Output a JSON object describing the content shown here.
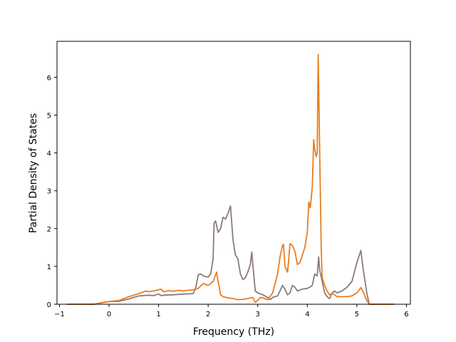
{
  "chart_data": {
    "type": "line",
    "title": "",
    "xlabel": "Frequency (THz)",
    "ylabel": "Partial Density of States",
    "xlim": [
      -1.05,
      6.08
    ],
    "ylim": [
      0,
      6.95
    ],
    "xticks": [
      -1,
      0,
      1,
      2,
      3,
      4,
      5,
      6
    ],
    "yticks": [
      0,
      1,
      2,
      3,
      4,
      5,
      6
    ],
    "grid": false,
    "legend": "none",
    "series": [
      {
        "color": "#8c7b7b",
        "points": [
          [
            -0.85,
            0.0
          ],
          [
            -0.3,
            0.0
          ],
          [
            -0.1,
            0.05
          ],
          [
            0.0,
            0.07
          ],
          [
            0.2,
            0.08
          ],
          [
            0.4,
            0.14
          ],
          [
            0.5,
            0.18
          ],
          [
            0.6,
            0.22
          ],
          [
            0.8,
            0.24
          ],
          [
            0.9,
            0.23
          ],
          [
            1.0,
            0.27
          ],
          [
            1.05,
            0.23
          ],
          [
            1.1,
            0.24
          ],
          [
            1.3,
            0.25
          ],
          [
            1.5,
            0.27
          ],
          [
            1.7,
            0.28
          ],
          [
            1.75,
            0.45
          ],
          [
            1.8,
            0.78
          ],
          [
            1.85,
            0.8
          ],
          [
            1.9,
            0.75
          ],
          [
            1.95,
            0.73
          ],
          [
            2.0,
            0.72
          ],
          [
            2.05,
            0.8
          ],
          [
            2.1,
            1.2
          ],
          [
            2.12,
            2.15
          ],
          [
            2.15,
            2.2
          ],
          [
            2.2,
            1.9
          ],
          [
            2.25,
            2.0
          ],
          [
            2.3,
            2.3
          ],
          [
            2.35,
            2.25
          ],
          [
            2.4,
            2.4
          ],
          [
            2.45,
            2.6
          ],
          [
            2.5,
            1.7
          ],
          [
            2.55,
            1.3
          ],
          [
            2.6,
            1.2
          ],
          [
            2.65,
            0.8
          ],
          [
            2.7,
            0.65
          ],
          [
            2.75,
            0.7
          ],
          [
            2.8,
            0.85
          ],
          [
            2.85,
            1.05
          ],
          [
            2.88,
            1.38
          ],
          [
            2.9,
            1.05
          ],
          [
            2.95,
            0.35
          ],
          [
            3.0,
            0.3
          ],
          [
            3.1,
            0.25
          ],
          [
            3.2,
            0.18
          ],
          [
            3.25,
            0.12
          ],
          [
            3.3,
            0.18
          ],
          [
            3.4,
            0.22
          ],
          [
            3.45,
            0.35
          ],
          [
            3.5,
            0.5
          ],
          [
            3.55,
            0.4
          ],
          [
            3.6,
            0.25
          ],
          [
            3.65,
            0.3
          ],
          [
            3.7,
            0.5
          ],
          [
            3.75,
            0.45
          ],
          [
            3.8,
            0.35
          ],
          [
            3.9,
            0.4
          ],
          [
            4.0,
            0.42
          ],
          [
            4.05,
            0.45
          ],
          [
            4.1,
            0.5
          ],
          [
            4.15,
            0.8
          ],
          [
            4.2,
            0.75
          ],
          [
            4.23,
            1.25
          ],
          [
            4.25,
            0.9
          ],
          [
            4.3,
            0.6
          ],
          [
            4.35,
            0.3
          ],
          [
            4.4,
            0.2
          ],
          [
            4.45,
            0.15
          ],
          [
            4.5,
            0.3
          ],
          [
            4.55,
            0.35
          ],
          [
            4.6,
            0.3
          ],
          [
            4.7,
            0.35
          ],
          [
            4.8,
            0.45
          ],
          [
            4.9,
            0.6
          ],
          [
            5.0,
            1.1
          ],
          [
            5.05,
            1.3
          ],
          [
            5.08,
            1.42
          ],
          [
            5.12,
            1.0
          ],
          [
            5.2,
            0.3
          ],
          [
            5.25,
            0.0
          ],
          [
            5.75,
            0.0
          ]
        ]
      },
      {
        "color": "#e67e22",
        "points": [
          [
            -0.85,
            0.0
          ],
          [
            -0.3,
            0.0
          ],
          [
            -0.1,
            0.05
          ],
          [
            0.0,
            0.07
          ],
          [
            0.2,
            0.1
          ],
          [
            0.4,
            0.2
          ],
          [
            0.6,
            0.28
          ],
          [
            0.7,
            0.33
          ],
          [
            0.75,
            0.35
          ],
          [
            0.8,
            0.33
          ],
          [
            0.9,
            0.35
          ],
          [
            1.0,
            0.38
          ],
          [
            1.05,
            0.4
          ],
          [
            1.1,
            0.33
          ],
          [
            1.2,
            0.36
          ],
          [
            1.3,
            0.34
          ],
          [
            1.4,
            0.37
          ],
          [
            1.5,
            0.35
          ],
          [
            1.6,
            0.37
          ],
          [
            1.7,
            0.38
          ],
          [
            1.8,
            0.42
          ],
          [
            1.9,
            0.55
          ],
          [
            2.0,
            0.5
          ],
          [
            2.1,
            0.6
          ],
          [
            2.15,
            0.78
          ],
          [
            2.17,
            0.85
          ],
          [
            2.2,
            0.6
          ],
          [
            2.25,
            0.25
          ],
          [
            2.3,
            0.2
          ],
          [
            2.4,
            0.17
          ],
          [
            2.5,
            0.15
          ],
          [
            2.6,
            0.12
          ],
          [
            2.7,
            0.13
          ],
          [
            2.8,
            0.15
          ],
          [
            2.9,
            0.18
          ],
          [
            2.95,
            0.05
          ],
          [
            3.0,
            0.1
          ],
          [
            3.05,
            0.18
          ],
          [
            3.1,
            0.17
          ],
          [
            3.2,
            0.12
          ],
          [
            3.3,
            0.3
          ],
          [
            3.4,
            0.8
          ],
          [
            3.45,
            1.25
          ],
          [
            3.5,
            1.55
          ],
          [
            3.52,
            1.58
          ],
          [
            3.55,
            1.0
          ],
          [
            3.6,
            0.85
          ],
          [
            3.62,
            1.1
          ],
          [
            3.65,
            1.6
          ],
          [
            3.7,
            1.55
          ],
          [
            3.75,
            1.4
          ],
          [
            3.8,
            1.05
          ],
          [
            3.85,
            1.1
          ],
          [
            3.9,
            1.3
          ],
          [
            3.95,
            1.5
          ],
          [
            4.0,
            1.9
          ],
          [
            4.03,
            2.7
          ],
          [
            4.06,
            2.55
          ],
          [
            4.1,
            3.1
          ],
          [
            4.13,
            4.35
          ],
          [
            4.15,
            4.1
          ],
          [
            4.18,
            3.9
          ],
          [
            4.2,
            4.0
          ],
          [
            4.22,
            6.6
          ],
          [
            4.25,
            4.0
          ],
          [
            4.28,
            1.5
          ],
          [
            4.3,
            0.7
          ],
          [
            4.35,
            0.5
          ],
          [
            4.4,
            0.35
          ],
          [
            4.45,
            0.25
          ],
          [
            4.5,
            0.28
          ],
          [
            4.55,
            0.25
          ],
          [
            4.6,
            0.2
          ],
          [
            4.8,
            0.2
          ],
          [
            4.9,
            0.22
          ],
          [
            5.0,
            0.3
          ],
          [
            5.05,
            0.38
          ],
          [
            5.08,
            0.44
          ],
          [
            5.12,
            0.35
          ],
          [
            5.2,
            0.1
          ],
          [
            5.25,
            0.0
          ],
          [
            5.75,
            0.0
          ]
        ]
      }
    ]
  }
}
